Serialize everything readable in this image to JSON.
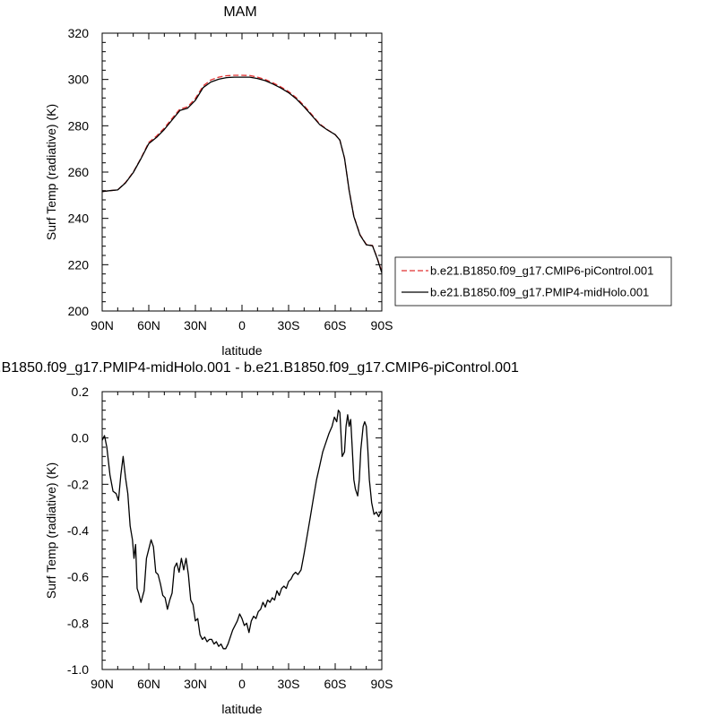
{
  "chart_data": [
    {
      "type": "line",
      "title": "MAM",
      "xlabel": "latitude",
      "ylabel": "Surf Temp (radiative) (K)",
      "xlim": [
        90,
        -90
      ],
      "ylim": [
        200,
        320
      ],
      "xticks": [
        90,
        60,
        30,
        0,
        -30,
        -60,
        -90
      ],
      "xtick_labels": [
        "90N",
        "60N",
        "30N",
        "0",
        "30S",
        "60S",
        "90S"
      ],
      "yticks": [
        200,
        220,
        240,
        260,
        280,
        300,
        320
      ],
      "ytick_labels": [
        "200",
        "220",
        "240",
        "260",
        "280",
        "300",
        "320"
      ],
      "legend_position": "right",
      "series": [
        {
          "name": "b.e21.B1850.f09_g17.CMIP6-piControl.001",
          "color": "#e03030",
          "dash": "dashed",
          "points": [
            [
              90,
              251.6
            ],
            [
              85,
              252.0
            ],
            [
              80,
              252.3
            ],
            [
              75,
              255.5
            ],
            [
              70,
              260.0
            ],
            [
              65,
              266.0
            ],
            [
              60,
              272.8
            ],
            [
              55,
              275.6
            ],
            [
              50,
              279.0
            ],
            [
              45,
              283.2
            ],
            [
              40,
              287.2
            ],
            [
              35,
              288.2
            ],
            [
              30,
              291.8
            ],
            [
              25,
              297.2
            ],
            [
              20,
              299.8
            ],
            [
              15,
              301.0
            ],
            [
              10,
              301.6
            ],
            [
              5,
              301.8
            ],
            [
              0,
              301.8
            ],
            [
              -5,
              301.7
            ],
            [
              -10,
              301.0
            ],
            [
              -15,
              300.0
            ],
            [
              -20,
              298.5
            ],
            [
              -25,
              296.8
            ],
            [
              -30,
              294.8
            ],
            [
              -35,
              292.1
            ],
            [
              -40,
              288.7
            ],
            [
              -45,
              284.8
            ],
            [
              -50,
              280.8
            ],
            [
              -55,
              278.3
            ],
            [
              -60,
              276.2
            ],
            [
              -63,
              273.8
            ],
            [
              -66,
              266.0
            ],
            [
              -69,
              252.0
            ],
            [
              -72,
              241.0
            ],
            [
              -76,
              233.0
            ],
            [
              -80,
              228.8
            ],
            [
              -84,
              228.3
            ],
            [
              -87,
              223.0
            ],
            [
              -90,
              217.0
            ]
          ]
        },
        {
          "name": "b.e21.B1850.f09_g17.PMIP4-midHolo.001",
          "color": "#000000",
          "dash": "solid",
          "points": [
            [
              90,
              251.6
            ],
            [
              85,
              252.0
            ],
            [
              80,
              252.3
            ],
            [
              75,
              255.3
            ],
            [
              70,
              259.8
            ],
            [
              65,
              265.8
            ],
            [
              60,
              272.3
            ],
            [
              55,
              275.0
            ],
            [
              50,
              278.4
            ],
            [
              45,
              282.5
            ],
            [
              40,
              286.6
            ],
            [
              35,
              287.6
            ],
            [
              30,
              291.0
            ],
            [
              25,
              296.5
            ],
            [
              20,
              298.9
            ],
            [
              15,
              300.1
            ],
            [
              10,
              300.8
            ],
            [
              5,
              301.0
            ],
            [
              0,
              301.0
            ],
            [
              -5,
              301.0
            ],
            [
              -10,
              300.4
            ],
            [
              -15,
              299.5
            ],
            [
              -20,
              298.0
            ],
            [
              -25,
              296.3
            ],
            [
              -30,
              294.3
            ],
            [
              -35,
              291.6
            ],
            [
              -40,
              288.2
            ],
            [
              -45,
              284.4
            ],
            [
              -50,
              280.5
            ],
            [
              -55,
              278.2
            ],
            [
              -60,
              276.2
            ],
            [
              -63,
              273.8
            ],
            [
              -66,
              266.0
            ],
            [
              -69,
              252.0
            ],
            [
              -72,
              240.8
            ],
            [
              -76,
              232.8
            ],
            [
              -80,
              228.6
            ],
            [
              -84,
              228.2
            ],
            [
              -87,
              222.8
            ],
            [
              -90,
              216.5
            ]
          ]
        }
      ]
    },
    {
      "type": "line",
      "title": "b.e21.B1850.f09_g17.PMIP4-midHolo.001 - b.e21.B1850.f09_g17.CMIP6-piControl.001",
      "xlabel": "latitude",
      "ylabel": "Surf Temp (radiative) (K)",
      "xlim": [
        90,
        -90
      ],
      "ylim": [
        -1.0,
        0.2
      ],
      "xticks": [
        90,
        60,
        30,
        0,
        -30,
        -60,
        -90
      ],
      "xtick_labels": [
        "90N",
        "60N",
        "30N",
        "0",
        "30S",
        "60S",
        "90S"
      ],
      "yticks": [
        -1.0,
        -0.8,
        -0.6,
        -0.4,
        -0.2,
        0.0,
        0.2
      ],
      "ytick_labels": [
        "-1.0",
        "-0.8",
        "-0.6",
        "-0.4",
        "-0.2",
        "0.0",
        "0.2"
      ],
      "series": [
        {
          "color": "#000000",
          "dash": "solid",
          "points": [
            [
              90,
              -0.01
            ],
            [
              88.5,
              0.01
            ],
            [
              87,
              -0.04
            ],
            [
              85,
              -0.16
            ],
            [
              83,
              -0.23
            ],
            [
              81,
              -0.24
            ],
            [
              79.5,
              -0.27
            ],
            [
              78,
              -0.16
            ],
            [
              76.5,
              -0.08
            ],
            [
              75,
              -0.17
            ],
            [
              73.5,
              -0.24
            ],
            [
              72,
              -0.38
            ],
            [
              70.5,
              -0.44
            ],
            [
              69.5,
              -0.52
            ],
            [
              68.5,
              -0.46
            ],
            [
              67.5,
              -0.65
            ],
            [
              66.5,
              -0.67
            ],
            [
              65,
              -0.71
            ],
            [
              63,
              -0.66
            ],
            [
              61.5,
              -0.52
            ],
            [
              60,
              -0.48
            ],
            [
              58.5,
              -0.44
            ],
            [
              57,
              -0.47
            ],
            [
              55.5,
              -0.58
            ],
            [
              54,
              -0.59
            ],
            [
              52.5,
              -0.63
            ],
            [
              51,
              -0.68
            ],
            [
              49.5,
              -0.69
            ],
            [
              48,
              -0.74
            ],
            [
              46.5,
              -0.7
            ],
            [
              45,
              -0.67
            ],
            [
              43.5,
              -0.56
            ],
            [
              42,
              -0.54
            ],
            [
              40.5,
              -0.58
            ],
            [
              39,
              -0.52
            ],
            [
              37.5,
              -0.57
            ],
            [
              36,
              -0.52
            ],
            [
              34.5,
              -0.59
            ],
            [
              33,
              -0.7
            ],
            [
              31.5,
              -0.72
            ],
            [
              30,
              -0.79
            ],
            [
              28.5,
              -0.78
            ],
            [
              27,
              -0.85
            ],
            [
              25.5,
              -0.87
            ],
            [
              24,
              -0.86
            ],
            [
              22.5,
              -0.88
            ],
            [
              21,
              -0.87
            ],
            [
              19.5,
              -0.87
            ],
            [
              18,
              -0.89
            ],
            [
              16.5,
              -0.88
            ],
            [
              15,
              -0.9
            ],
            [
              13.5,
              -0.89
            ],
            [
              12,
              -0.91
            ],
            [
              10.5,
              -0.91
            ],
            [
              9,
              -0.89
            ],
            [
              7.5,
              -0.86
            ],
            [
              6,
              -0.83
            ],
            [
              4.5,
              -0.81
            ],
            [
              3,
              -0.79
            ],
            [
              1.5,
              -0.76
            ],
            [
              0,
              -0.78
            ],
            [
              -1.5,
              -0.81
            ],
            [
              -3,
              -0.8
            ],
            [
              -4.5,
              -0.84
            ],
            [
              -6,
              -0.79
            ],
            [
              -7.5,
              -0.77
            ],
            [
              -9,
              -0.78
            ],
            [
              -10.5,
              -0.75
            ],
            [
              -12,
              -0.74
            ],
            [
              -13.5,
              -0.71
            ],
            [
              -15,
              -0.73
            ],
            [
              -16.5,
              -0.7
            ],
            [
              -18,
              -0.71
            ],
            [
              -19.5,
              -0.69
            ],
            [
              -21,
              -0.7
            ],
            [
              -22.5,
              -0.66
            ],
            [
              -24,
              -0.68
            ],
            [
              -25.5,
              -0.65
            ],
            [
              -27,
              -0.64
            ],
            [
              -28.5,
              -0.65
            ],
            [
              -30,
              -0.62
            ],
            [
              -31.5,
              -0.61
            ],
            [
              -33,
              -0.59
            ],
            [
              -34.5,
              -0.58
            ],
            [
              -36,
              -0.59
            ],
            [
              -38,
              -0.57
            ],
            [
              -40,
              -0.5
            ],
            [
              -42,
              -0.42
            ],
            [
              -44,
              -0.34
            ],
            [
              -46,
              -0.26
            ],
            [
              -48,
              -0.18
            ],
            [
              -50,
              -0.12
            ],
            [
              -52,
              -0.06
            ],
            [
              -54,
              -0.02
            ],
            [
              -56,
              0.02
            ],
            [
              -58,
              0.05
            ],
            [
              -59.5,
              0.09
            ],
            [
              -61,
              0.07
            ],
            [
              -62,
              0.12
            ],
            [
              -63,
              0.11
            ],
            [
              -64.5,
              -0.08
            ],
            [
              -66,
              -0.06
            ],
            [
              -67,
              0.05
            ],
            [
              -68,
              0.1
            ],
            [
              -69,
              0.05
            ],
            [
              -70,
              0.08
            ],
            [
              -71,
              -0.05
            ],
            [
              -72,
              -0.18
            ],
            [
              -73,
              -0.22
            ],
            [
              -74.5,
              -0.25
            ],
            [
              -75.5,
              -0.18
            ],
            [
              -76.5,
              -0.05
            ],
            [
              -78,
              0.05
            ],
            [
              -79,
              0.07
            ],
            [
              -80,
              0.05
            ],
            [
              -81,
              -0.05
            ],
            [
              -82,
              -0.18
            ],
            [
              -83.5,
              -0.28
            ],
            [
              -85,
              -0.33
            ],
            [
              -86.5,
              -0.32
            ],
            [
              -88,
              -0.34
            ],
            [
              -90,
              -0.31
            ]
          ]
        }
      ]
    }
  ]
}
